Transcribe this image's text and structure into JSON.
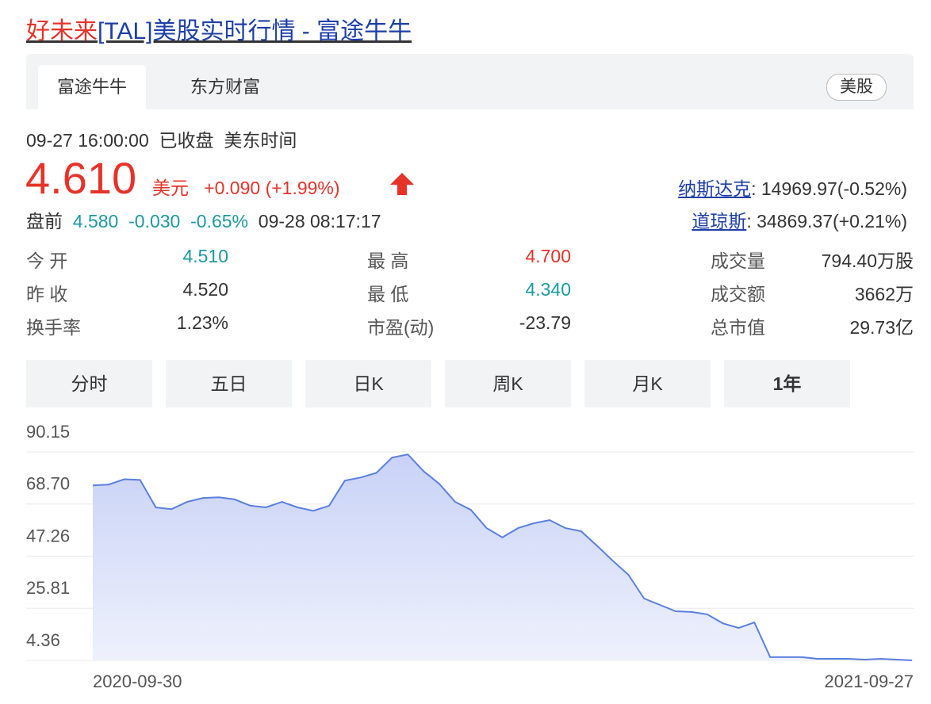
{
  "header": {
    "title_name": "好未来",
    "title_rest": "[TAL]美股实时行情 - 富途牛牛"
  },
  "tabs": [
    "富途牛牛",
    "东方财富"
  ],
  "market": "美股",
  "quote": {
    "time": "09-27 16:00:00",
    "status": "已收盘",
    "timezone": "美东时间",
    "price": "4.610",
    "currency": "美元",
    "change": "+0.090",
    "change_pct": "(+1.99%)"
  },
  "premarket": {
    "label": "盘前",
    "price": "4.580",
    "change": "-0.030",
    "change_pct": "-0.65%",
    "time": "09-28 08:17:17"
  },
  "indices": [
    {
      "name": "纳斯达克",
      "value": ": 14969.97(-0.52%)"
    },
    {
      "name": "道琼斯",
      "value": ": 34869.37(+0.21%)"
    }
  ],
  "stats": [
    [
      [
        "今 开",
        "4.510"
      ],
      [
        "最 高",
        "4.700"
      ],
      [
        "成交量",
        "794.40万股"
      ]
    ],
    [
      [
        "昨 收",
        "4.520"
      ],
      [
        "最 低",
        "4.340"
      ],
      [
        "成交额",
        "3662万"
      ]
    ],
    [
      [
        "换手率",
        "1.23%"
      ],
      [
        "市盈(动)",
        "-23.79"
      ],
      [
        "总市值",
        "29.73亿"
      ]
    ]
  ],
  "periods": [
    "分时",
    "五日",
    "日K",
    "周K",
    "月K",
    "1年"
  ],
  "chart_data": {
    "type": "line",
    "categories": [
      "2020-09-30",
      null,
      null,
      null,
      null,
      null,
      null,
      null,
      null,
      null,
      null,
      null,
      null,
      null,
      null,
      null,
      null,
      null,
      null,
      null,
      null,
      null,
      null,
      null,
      null,
      null,
      null,
      null,
      null,
      null,
      null,
      null,
      null,
      null,
      null,
      null,
      null,
      null,
      null,
      null,
      null,
      null,
      null,
      null,
      null,
      null,
      null,
      null,
      null,
      null,
      null,
      null,
      "2021-09-27"
    ],
    "series": [
      {
        "name": "TAL",
        "color": "#5b7fe0",
        "values": [
          76.4,
          76.7,
          78.9,
          78.6,
          67.3,
          66.6,
          69.6,
          71.2,
          71.5,
          70.6,
          68.0,
          67.3,
          69.6,
          67.3,
          65.9,
          68.0,
          78.3,
          79.6,
          81.5,
          87.8,
          89.1,
          82.2,
          77.0,
          69.6,
          66.3,
          58.8,
          55.0,
          58.8,
          60.8,
          62.1,
          58.8,
          57.5,
          51.6,
          45.4,
          39.6,
          29.8,
          27.2,
          24.6,
          24.3,
          23.3,
          19.6,
          17.7,
          20.0,
          5.7,
          5.7,
          5.7,
          5.0,
          5.0,
          5.0,
          4.7,
          5.0,
          4.7,
          4.4
        ]
      }
    ],
    "ylim": [
      4.36,
      90.15
    ],
    "yticks": [
      90.15,
      {
        "value": 68.7,
        "label": "68.70"
      },
      47.26,
      25.81,
      4.36
    ],
    "grid": true
  }
}
